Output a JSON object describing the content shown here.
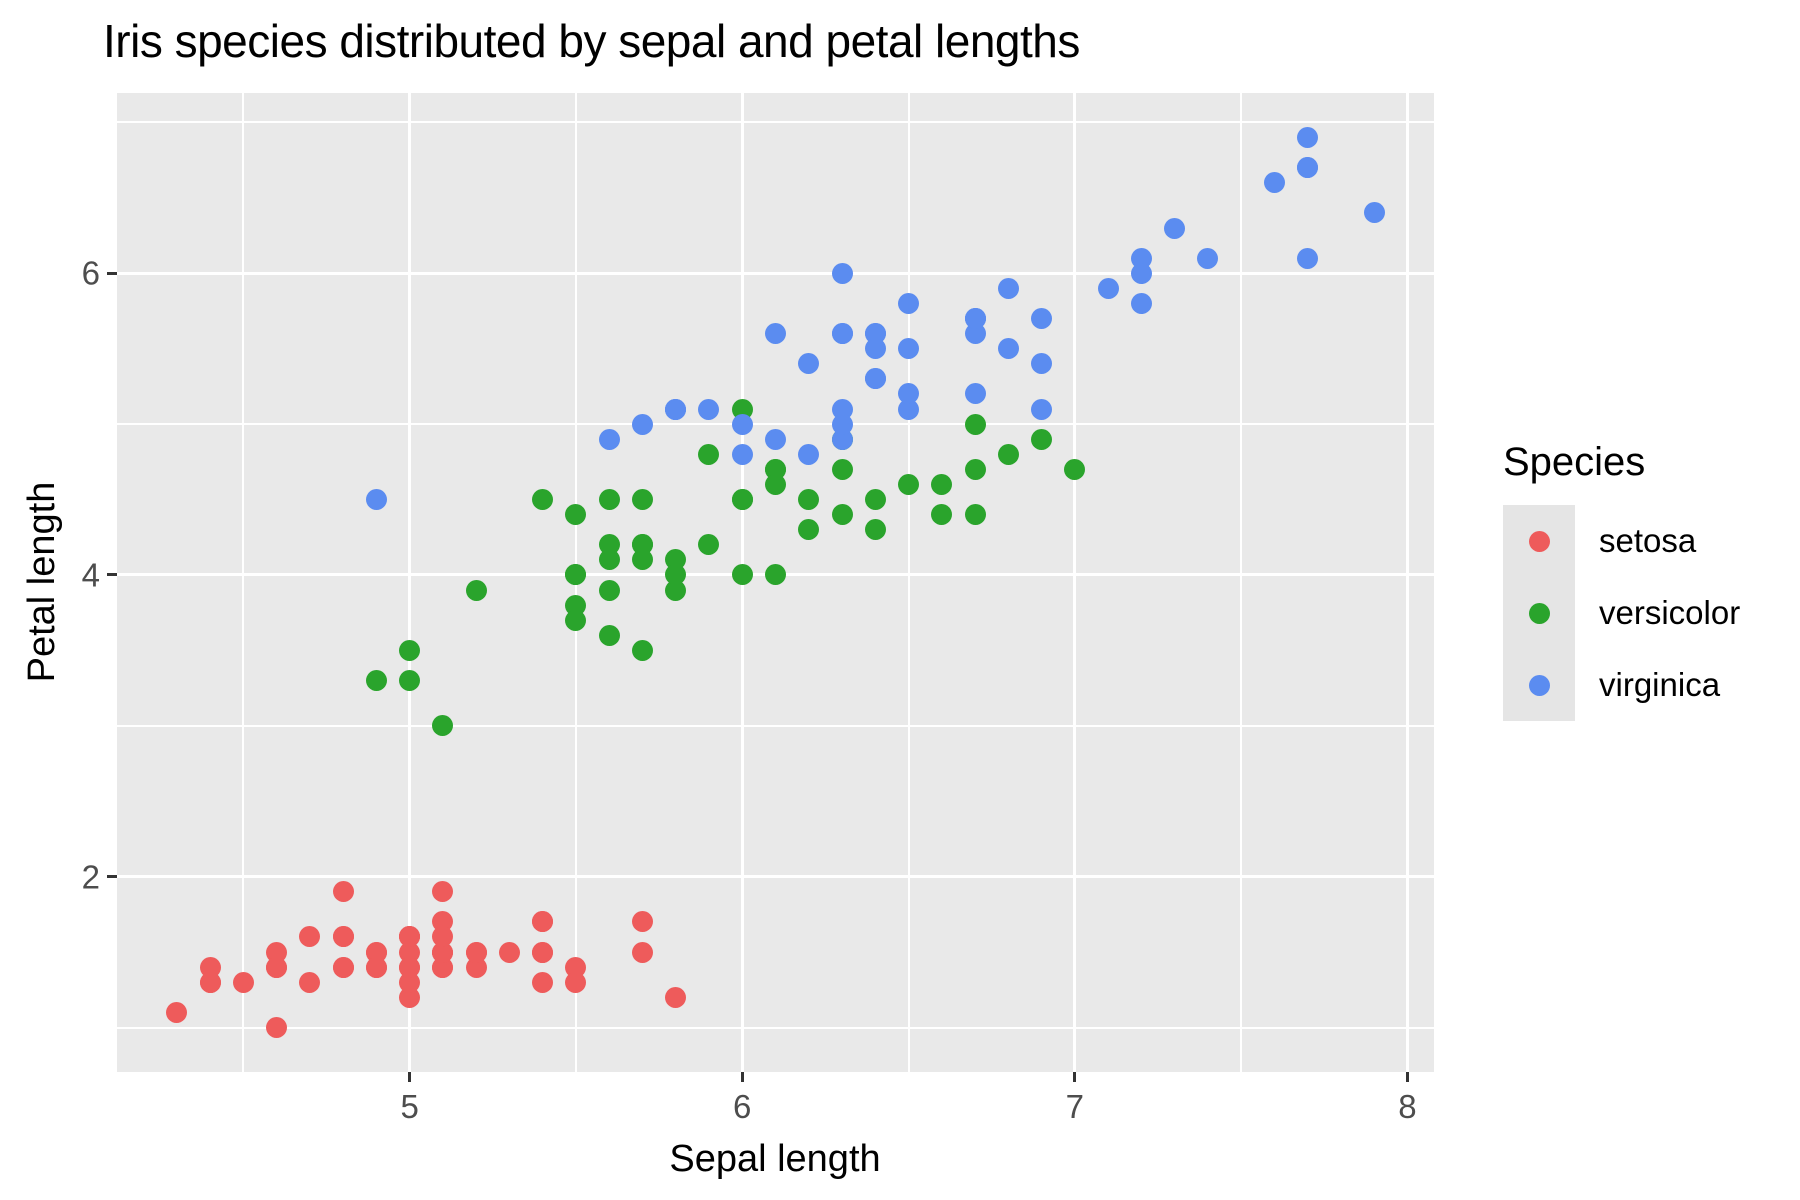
{
  "chart_data": {
    "type": "scatter",
    "title": "Iris species distributed by sepal and petal lengths",
    "xlabel": "Sepal length",
    "ylabel": "Petal length",
    "xlim": [
      4.12,
      8.08
    ],
    "ylim": [
      0.705,
      7.195
    ],
    "x_ticks": [
      5,
      6,
      7,
      8
    ],
    "y_ticks": [
      2,
      4,
      6
    ],
    "x_minor_ticks": [
      4.5,
      5.5,
      6.5,
      7.5
    ],
    "y_minor_ticks": [
      1,
      3,
      5,
      7
    ],
    "grid": "on",
    "panel_background": "#E9E9E9",
    "gridline_color": "#ffffff",
    "legend": {
      "title": "Species",
      "position": "right",
      "entries": [
        {
          "label": "setosa",
          "color": "#EE5B5B"
        },
        {
          "label": "versicolor",
          "color": "#2AA42C"
        },
        {
          "label": "virginica",
          "color": "#5B8CF0"
        }
      ]
    },
    "series": [
      {
        "name": "setosa",
        "color": "#EE5B5B",
        "points": [
          [
            5.1,
            1.4
          ],
          [
            4.9,
            1.4
          ],
          [
            4.7,
            1.3
          ],
          [
            4.6,
            1.5
          ],
          [
            5.0,
            1.4
          ],
          [
            5.4,
            1.7
          ],
          [
            4.6,
            1.4
          ],
          [
            5.0,
            1.5
          ],
          [
            4.4,
            1.4
          ],
          [
            4.9,
            1.5
          ],
          [
            5.4,
            1.5
          ],
          [
            4.8,
            1.6
          ],
          [
            4.8,
            1.4
          ],
          [
            4.3,
            1.1
          ],
          [
            5.8,
            1.2
          ],
          [
            5.7,
            1.5
          ],
          [
            5.4,
            1.3
          ],
          [
            5.1,
            1.4
          ],
          [
            5.7,
            1.7
          ],
          [
            5.1,
            1.5
          ],
          [
            5.4,
            1.7
          ],
          [
            5.1,
            1.5
          ],
          [
            4.6,
            1.0
          ],
          [
            5.1,
            1.7
          ],
          [
            4.8,
            1.9
          ],
          [
            5.0,
            1.6
          ],
          [
            5.0,
            1.6
          ],
          [
            5.2,
            1.5
          ],
          [
            5.2,
            1.4
          ],
          [
            4.7,
            1.6
          ],
          [
            4.8,
            1.6
          ],
          [
            5.4,
            1.5
          ],
          [
            5.2,
            1.5
          ],
          [
            5.5,
            1.4
          ],
          [
            4.9,
            1.5
          ],
          [
            5.0,
            1.2
          ],
          [
            5.5,
            1.3
          ],
          [
            4.9,
            1.4
          ],
          [
            4.4,
            1.3
          ],
          [
            5.1,
            1.5
          ],
          [
            5.0,
            1.3
          ],
          [
            4.5,
            1.3
          ],
          [
            4.4,
            1.3
          ],
          [
            5.0,
            1.6
          ],
          [
            5.1,
            1.9
          ],
          [
            4.8,
            1.4
          ],
          [
            5.1,
            1.6
          ],
          [
            4.6,
            1.4
          ],
          [
            5.3,
            1.5
          ],
          [
            5.0,
            1.4
          ]
        ]
      },
      {
        "name": "versicolor",
        "color": "#2AA42C",
        "points": [
          [
            7.0,
            4.7
          ],
          [
            6.4,
            4.5
          ],
          [
            6.9,
            4.9
          ],
          [
            5.5,
            4.0
          ],
          [
            6.5,
            4.6
          ],
          [
            5.7,
            4.5
          ],
          [
            6.3,
            4.7
          ],
          [
            4.9,
            3.3
          ],
          [
            6.6,
            4.6
          ],
          [
            5.2,
            3.9
          ],
          [
            5.0,
            3.5
          ],
          [
            5.9,
            4.2
          ],
          [
            6.0,
            4.0
          ],
          [
            6.1,
            4.7
          ],
          [
            5.6,
            3.6
          ],
          [
            6.7,
            4.4
          ],
          [
            5.6,
            4.5
          ],
          [
            5.8,
            4.1
          ],
          [
            6.2,
            4.5
          ],
          [
            5.6,
            3.9
          ],
          [
            5.9,
            4.8
          ],
          [
            6.1,
            4.0
          ],
          [
            6.3,
            4.9
          ],
          [
            6.1,
            4.7
          ],
          [
            6.4,
            4.3
          ],
          [
            6.6,
            4.4
          ],
          [
            6.8,
            4.8
          ],
          [
            6.7,
            5.0
          ],
          [
            6.0,
            4.5
          ],
          [
            5.7,
            3.5
          ],
          [
            5.5,
            3.8
          ],
          [
            5.5,
            3.7
          ],
          [
            5.8,
            3.9
          ],
          [
            6.0,
            5.1
          ],
          [
            5.4,
            4.5
          ],
          [
            6.0,
            4.5
          ],
          [
            6.7,
            4.7
          ],
          [
            6.3,
            4.4
          ],
          [
            5.6,
            4.1
          ],
          [
            5.5,
            4.0
          ],
          [
            5.5,
            4.4
          ],
          [
            6.1,
            4.6
          ],
          [
            5.8,
            4.0
          ],
          [
            5.0,
            3.3
          ],
          [
            5.6,
            4.2
          ],
          [
            5.7,
            4.2
          ],
          [
            5.7,
            4.2
          ],
          [
            6.2,
            4.3
          ],
          [
            5.1,
            3.0
          ],
          [
            5.7,
            4.1
          ]
        ]
      },
      {
        "name": "virginica",
        "color": "#5B8CF0",
        "points": [
          [
            6.3,
            6.0
          ],
          [
            5.8,
            5.1
          ],
          [
            7.1,
            5.9
          ],
          [
            6.3,
            5.6
          ],
          [
            6.5,
            5.8
          ],
          [
            7.6,
            6.6
          ],
          [
            4.9,
            4.5
          ],
          [
            7.3,
            6.3
          ],
          [
            6.7,
            5.7
          ],
          [
            7.2,
            6.1
          ],
          [
            6.5,
            5.1
          ],
          [
            6.4,
            5.3
          ],
          [
            6.8,
            5.5
          ],
          [
            5.7,
            5.0
          ],
          [
            5.8,
            5.1
          ],
          [
            6.4,
            5.3
          ],
          [
            6.5,
            5.5
          ],
          [
            7.7,
            6.7
          ],
          [
            7.7,
            6.9
          ],
          [
            6.0,
            5.0
          ],
          [
            6.9,
            5.7
          ],
          [
            5.6,
            4.9
          ],
          [
            7.7,
            6.7
          ],
          [
            6.3,
            4.9
          ],
          [
            6.7,
            5.7
          ],
          [
            7.2,
            6.0
          ],
          [
            6.2,
            4.8
          ],
          [
            6.1,
            4.9
          ],
          [
            6.4,
            5.6
          ],
          [
            7.2,
            5.8
          ],
          [
            7.4,
            6.1
          ],
          [
            7.9,
            6.4
          ],
          [
            6.4,
            5.6
          ],
          [
            6.3,
            5.1
          ],
          [
            6.1,
            5.6
          ],
          [
            7.7,
            6.1
          ],
          [
            6.3,
            5.6
          ],
          [
            6.4,
            5.5
          ],
          [
            6.0,
            4.8
          ],
          [
            6.9,
            5.4
          ],
          [
            6.7,
            5.6
          ],
          [
            6.9,
            5.1
          ],
          [
            5.8,
            5.1
          ],
          [
            6.8,
            5.9
          ],
          [
            6.7,
            5.7
          ],
          [
            6.7,
            5.2
          ],
          [
            6.3,
            5.0
          ],
          [
            6.5,
            5.2
          ],
          [
            6.2,
            5.4
          ],
          [
            5.9,
            5.1
          ]
        ]
      }
    ]
  }
}
